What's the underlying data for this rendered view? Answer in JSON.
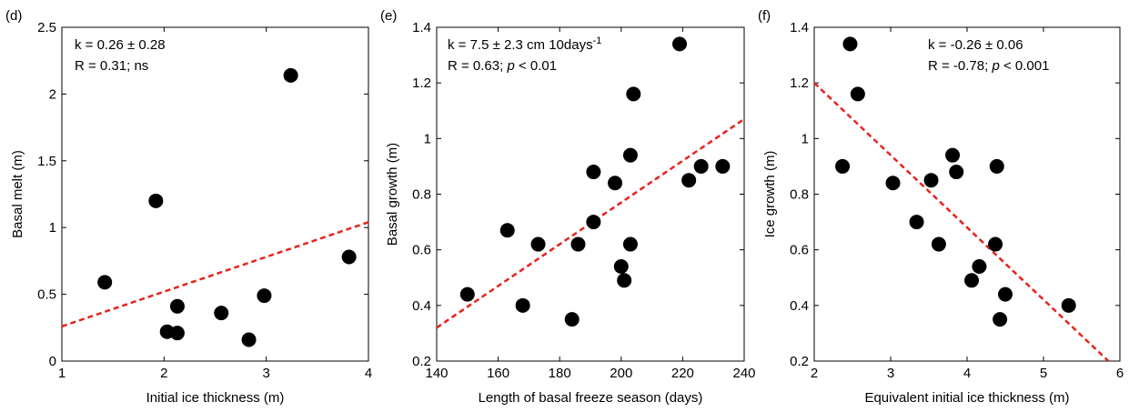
{
  "chart_data": [
    {
      "type": "scatter",
      "panel_label": "(d)",
      "xlabel": "Initial ice thickness (m)",
      "ylabel": "Basal melt (m)",
      "annotation_lines": [
        [
          {
            "text": "k = 0.26 ± 0.28",
            "style": "normal"
          }
        ],
        [
          {
            "text": "R = 0.31; ns",
            "style": "normal"
          }
        ]
      ],
      "xlim": [
        1,
        4
      ],
      "ylim": [
        0,
        2.5
      ],
      "xticks": [
        1,
        2,
        3,
        4
      ],
      "yticks": [
        0,
        0.5,
        1,
        1.5,
        2,
        2.5
      ],
      "color": "#000000",
      "fit_color": "#e8221c",
      "x": [
        1.42,
        1.92,
        2.03,
        2.13,
        2.13,
        2.56,
        2.83,
        2.98,
        3.24,
        3.81
      ],
      "values": [
        0.59,
        1.2,
        0.22,
        0.41,
        0.21,
        0.36,
        0.16,
        0.49,
        2.14,
        0.78
      ],
      "fit_line": {
        "x": [
          1,
          4
        ],
        "y": [
          0.26,
          1.04
        ]
      }
    },
    {
      "type": "scatter",
      "panel_label": "(e)",
      "xlabel": "Length of basal freeze season (days)",
      "ylabel": "Basal growth (m)",
      "annotation_lines": [
        [
          {
            "text": "k = 7.5 ± 2.3 cm 10days",
            "style": "normal"
          },
          {
            "text": "-1",
            "style": "sup"
          }
        ],
        [
          {
            "text": "R = 0.63; ",
            "style": "normal"
          },
          {
            "text": "p",
            "style": "italic"
          },
          {
            "text": " < 0.01",
            "style": "normal"
          }
        ]
      ],
      "xlim": [
        140,
        240
      ],
      "ylim": [
        0.2,
        1.4
      ],
      "xticks": [
        140,
        160,
        180,
        200,
        220,
        240
      ],
      "yticks": [
        0.2,
        0.4,
        0.6,
        0.8,
        1,
        1.2,
        1.4
      ],
      "color": "#000000",
      "fit_color": "#e8221c",
      "x": [
        150,
        163,
        168,
        173,
        184,
        186,
        191,
        191,
        198,
        200,
        201,
        203,
        203,
        204,
        219,
        222,
        226,
        233
      ],
      "values": [
        0.44,
        0.67,
        0.4,
        0.62,
        0.35,
        0.62,
        0.88,
        0.7,
        0.84,
        0.54,
        0.49,
        0.94,
        0.62,
        1.16,
        1.34,
        0.85,
        0.9,
        0.9
      ],
      "fit_line": {
        "x": [
          140,
          240
        ],
        "y": [
          0.32,
          1.07
        ]
      }
    },
    {
      "type": "scatter",
      "panel_label": "(f)",
      "xlabel": "Equivalent initial ice thickness (m)",
      "ylabel": "Ice growth (m)",
      "annotation_lines": [
        [
          {
            "text": "k = -0.26 ± 0.06",
            "style": "normal"
          }
        ],
        [
          {
            "text": "R = -0.78; ",
            "style": "normal"
          },
          {
            "text": "p",
            "style": "italic"
          },
          {
            "text": " < 0.001",
            "style": "normal"
          }
        ]
      ],
      "xlim": [
        2,
        6
      ],
      "ylim": [
        0.2,
        1.4
      ],
      "xticks": [
        2,
        3,
        4,
        5,
        6
      ],
      "yticks": [
        0.2,
        0.4,
        0.6,
        0.8,
        1,
        1.2,
        1.4
      ],
      "color": "#000000",
      "fit_color": "#e8221c",
      "x": [
        2.37,
        2.47,
        2.57,
        3.03,
        3.34,
        3.53,
        3.63,
        3.81,
        3.86,
        4.06,
        4.16,
        4.37,
        4.39,
        4.43,
        4.5,
        5.33
      ],
      "values": [
        0.9,
        1.34,
        1.16,
        0.84,
        0.7,
        0.85,
        0.62,
        0.94,
        0.88,
        0.49,
        0.54,
        0.62,
        0.9,
        0.35,
        0.44,
        0.4
      ],
      "fit_line": {
        "x": [
          2,
          5.85
        ],
        "y": [
          1.2,
          0.2
        ]
      }
    }
  ]
}
